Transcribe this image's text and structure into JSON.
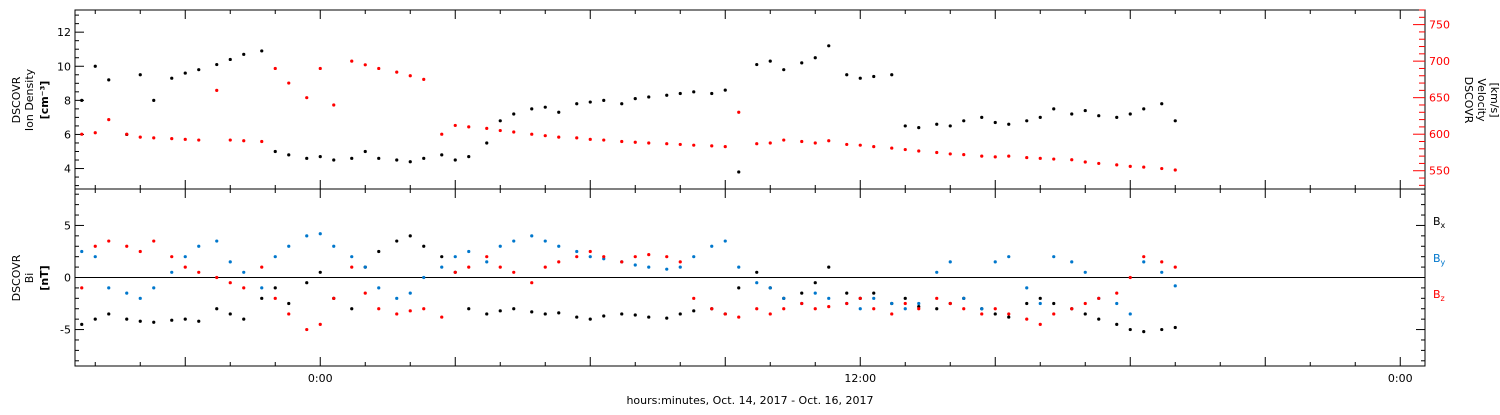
{
  "chart_data": [
    {
      "type": "scatter",
      "title": "",
      "xlabel": "hours:minutes, Oct. 14, 2017 - Oct. 16, 2017",
      "x_ticks": [
        {
          "hour": 24,
          "label": "0:00"
        },
        {
          "hour": 36,
          "label": "12:00"
        },
        {
          "hour": 48,
          "label": "0:00"
        }
      ],
      "xlim_hours": [
        18.55,
        48.55
      ],
      "y_left": {
        "label_lines": [
          "DSCOVR",
          "Ion Density"
        ],
        "unit": "[cm⁻³]",
        "ylim": [
          2.8,
          13.3
        ],
        "ticks": [
          4,
          6,
          8,
          10,
          12
        ]
      },
      "y_right": {
        "label_lines": [
          "DSCOVR",
          "Velocity"
        ],
        "unit": "[km/s]",
        "ylim": [
          525,
          770
        ],
        "ticks": [
          550,
          600,
          650,
          700,
          750
        ]
      },
      "series": [
        {
          "name": "",
          "axis": "left",
          "color": "#000000",
          "x_hours": [
            18.7,
            19.0,
            19.3,
            19.7,
            20.0,
            20.3,
            20.7,
            21.0,
            21.3,
            21.7,
            22.0,
            22.3,
            22.7,
            23.0,
            23.3,
            23.7,
            24.0,
            24.3,
            24.7,
            25.0,
            25.3,
            25.7,
            26.0,
            26.3,
            26.7,
            27.0,
            27.3,
            27.7,
            28.0,
            28.3,
            28.7,
            29.0,
            29.3,
            29.7,
            30.0,
            30.3,
            30.7,
            31.0,
            31.3,
            31.7,
            32.0,
            32.3,
            32.7,
            33.0,
            33.3,
            33.7,
            34.0,
            34.3,
            34.7,
            35.0,
            35.3,
            35.7,
            36.0,
            36.3,
            36.7,
            37.0,
            37.3,
            37.7,
            38.0,
            38.3,
            38.7,
            39.0,
            39.3,
            39.7,
            40.0,
            40.3,
            40.7,
            41.0,
            41.3,
            41.7,
            42.0,
            42.3,
            42.7,
            43.0
          ],
          "values": [
            8.0,
            10.0,
            9.2,
            6.0,
            9.5,
            8.0,
            9.3,
            9.6,
            9.8,
            10.1,
            10.4,
            10.7,
            10.9,
            5.0,
            4.8,
            4.6,
            4.7,
            4.5,
            4.6,
            5.0,
            4.6,
            4.5,
            4.4,
            4.6,
            4.8,
            4.5,
            4.7,
            5.5,
            6.8,
            7.2,
            7.5,
            7.6,
            7.3,
            7.8,
            7.9,
            8.0,
            7.8,
            8.1,
            8.2,
            8.3,
            8.4,
            8.5,
            8.4,
            8.6,
            3.8,
            10.1,
            10.3,
            9.8,
            10.2,
            10.5,
            11.2,
            9.5,
            9.3,
            9.4,
            9.5,
            6.5,
            6.4,
            6.6,
            6.5,
            6.8,
            7.0,
            6.7,
            6.6,
            6.8,
            7.0,
            7.5,
            7.2,
            7.4,
            7.1,
            7.0,
            7.2,
            7.5,
            7.8,
            6.8
          ]
        },
        {
          "name": "",
          "axis": "right",
          "color": "#ff0000",
          "x_hours": [
            18.7,
            19.0,
            19.3,
            19.7,
            20.0,
            20.3,
            20.7,
            21.0,
            21.3,
            21.7,
            22.0,
            22.3,
            22.7,
            23.0,
            23.3,
            23.7,
            24.0,
            24.3,
            24.7,
            25.0,
            25.3,
            25.7,
            26.0,
            26.3,
            26.7,
            27.0,
            27.3,
            27.7,
            28.0,
            28.3,
            28.7,
            29.0,
            29.3,
            29.7,
            30.0,
            30.3,
            30.7,
            31.0,
            31.3,
            31.7,
            32.0,
            32.3,
            32.7,
            33.0,
            33.3,
            33.7,
            34.0,
            34.3,
            34.7,
            35.0,
            35.3,
            35.7,
            36.0,
            36.3,
            36.7,
            37.0,
            37.3,
            37.7,
            38.0,
            38.3,
            38.7,
            39.0,
            39.3,
            39.7,
            40.0,
            40.3,
            40.7,
            41.0,
            41.3,
            41.7,
            42.0,
            42.3,
            42.7,
            43.0
          ],
          "values": [
            600,
            602,
            620,
            600,
            596,
            595,
            594,
            593,
            592,
            660,
            592,
            591,
            590,
            690,
            670,
            650,
            690,
            640,
            700,
            695,
            690,
            685,
            680,
            675,
            600,
            612,
            610,
            608,
            605,
            603,
            600,
            598,
            596,
            595,
            593,
            592,
            590,
            589,
            588,
            587,
            586,
            585,
            584,
            583,
            630,
            587,
            588,
            592,
            590,
            588,
            591,
            586,
            585,
            583,
            581,
            579,
            577,
            575,
            573,
            572,
            570,
            569,
            570,
            568,
            567,
            566,
            565,
            562,
            560,
            558,
            556,
            555,
            553,
            551
          ]
        }
      ]
    },
    {
      "type": "scatter",
      "title": "",
      "xlabel": "hours:minutes, Oct. 14, 2017 - Oct. 16, 2017",
      "xlim_hours": [
        18.55,
        48.55
      ],
      "y_left": {
        "label_lines": [
          "DSCOVR",
          "Bi"
        ],
        "unit": "[nT]",
        "ylim": [
          -8.5,
          8.5
        ],
        "ticks": [
          -5,
          0,
          5
        ]
      },
      "zero_line": true,
      "legend": [
        {
          "base": "B",
          "sub": "x",
          "color": "#000000"
        },
        {
          "base": "B",
          "sub": "y",
          "color": "#0077cc"
        },
        {
          "base": "B",
          "sub": "z",
          "color": "#ff0000"
        }
      ],
      "legend_placement": "right",
      "series": [
        {
          "name": "Bx",
          "color": "#000000",
          "x_hours": [
            18.7,
            19.0,
            19.3,
            19.7,
            20.0,
            20.3,
            20.7,
            21.0,
            21.3,
            21.7,
            22.0,
            22.3,
            22.7,
            23.0,
            23.3,
            23.7,
            24.0,
            24.3,
            24.7,
            25.0,
            25.3,
            25.7,
            26.0,
            26.3,
            26.7,
            27.0,
            27.3,
            27.7,
            28.0,
            28.3,
            28.7,
            29.0,
            29.3,
            29.7,
            30.0,
            30.3,
            30.7,
            31.0,
            31.3,
            31.7,
            32.0,
            32.3,
            32.7,
            33.0,
            33.3,
            33.7,
            34.0,
            34.3,
            34.7,
            35.0,
            35.3,
            35.7,
            36.0,
            36.3,
            36.7,
            37.0,
            37.3,
            37.7,
            38.0,
            38.3,
            38.7,
            39.0,
            39.3,
            39.7,
            40.0,
            40.3,
            40.7,
            41.0,
            41.3,
            41.7,
            42.0,
            42.3,
            42.7,
            43.0
          ],
          "values": [
            -4.5,
            -4.0,
            -3.5,
            -4.0,
            -4.2,
            -4.3,
            -4.1,
            -4.0,
            -4.2,
            -3.0,
            -3.5,
            -4.0,
            -2.0,
            -1.0,
            -2.5,
            -0.5,
            0.5,
            -2.0,
            -3.0,
            1.0,
            2.5,
            3.5,
            4.0,
            3.0,
            2.0,
            0.5,
            -3.0,
            -3.5,
            -3.2,
            -3.0,
            -3.3,
            -3.5,
            -3.4,
            -3.8,
            -4.0,
            -3.7,
            -3.5,
            -3.6,
            -3.8,
            -3.9,
            -3.5,
            -3.2,
            -3.0,
            -3.5,
            -1.0,
            0.5,
            -1.0,
            -2.0,
            -1.5,
            -0.5,
            1.0,
            -1.5,
            -2.0,
            -1.5,
            -2.5,
            -2.0,
            -2.8,
            -3.0,
            -2.5,
            -2.0,
            -3.0,
            -3.5,
            -3.8,
            -2.5,
            -2.0,
            -2.5,
            -3.0,
            -3.5,
            -4.0,
            -4.5,
            -5.0,
            -5.2,
            -5.0,
            -4.8
          ]
        },
        {
          "name": "By",
          "color": "#0077cc",
          "x_hours": [
            18.7,
            19.0,
            19.3,
            19.7,
            20.0,
            20.3,
            20.7,
            21.0,
            21.3,
            21.7,
            22.0,
            22.3,
            22.7,
            23.0,
            23.3,
            23.7,
            24.0,
            24.3,
            24.7,
            25.0,
            25.3,
            25.7,
            26.0,
            26.3,
            26.7,
            27.0,
            27.3,
            27.7,
            28.0,
            28.3,
            28.7,
            29.0,
            29.3,
            29.7,
            30.0,
            30.3,
            30.7,
            31.0,
            31.3,
            31.7,
            32.0,
            32.3,
            32.7,
            33.0,
            33.3,
            33.7,
            34.0,
            34.3,
            34.7,
            35.0,
            35.3,
            35.7,
            36.0,
            36.3,
            36.7,
            37.0,
            37.3,
            37.7,
            38.0,
            38.3,
            38.7,
            39.0,
            39.3,
            39.7,
            40.0,
            40.3,
            40.7,
            41.0,
            41.3,
            41.7,
            42.0,
            42.3,
            42.7,
            43.0
          ],
          "values": [
            2.5,
            2.0,
            -1.0,
            -1.5,
            -2.0,
            -1.0,
            0.5,
            2.0,
            3.0,
            3.5,
            1.5,
            0.5,
            -1.0,
            2.0,
            3.0,
            4.0,
            4.2,
            3.0,
            2.0,
            1.0,
            -1.0,
            -2.0,
            -1.5,
            0.0,
            1.0,
            2.0,
            2.5,
            1.5,
            3.0,
            3.5,
            4.0,
            3.5,
            3.0,
            2.5,
            2.0,
            1.8,
            1.5,
            1.2,
            1.0,
            0.8,
            1.0,
            2.0,
            3.0,
            3.5,
            1.0,
            -0.5,
            -1.0,
            -2.0,
            -2.5,
            -1.5,
            -2.0,
            -2.5,
            -3.0,
            -2.0,
            -2.5,
            -3.0,
            -2.5,
            0.5,
            1.5,
            -2.0,
            -3.0,
            1.5,
            2.0,
            -1.0,
            -2.5,
            2.0,
            1.5,
            0.5,
            -2.0,
            -2.5,
            -3.5,
            1.5,
            0.5,
            -0.8
          ]
        },
        {
          "name": "Bz",
          "color": "#ff0000",
          "x_hours": [
            18.7,
            19.0,
            19.3,
            19.7,
            20.0,
            20.3,
            20.7,
            21.0,
            21.3,
            21.7,
            22.0,
            22.3,
            22.7,
            23.0,
            23.3,
            23.7,
            24.0,
            24.3,
            24.7,
            25.0,
            25.3,
            25.7,
            26.0,
            26.3,
            26.7,
            27.0,
            27.3,
            27.7,
            28.0,
            28.3,
            28.7,
            29.0,
            29.3,
            29.7,
            30.0,
            30.3,
            30.7,
            31.0,
            31.3,
            31.7,
            32.0,
            32.3,
            32.7,
            33.0,
            33.3,
            33.7,
            34.0,
            34.3,
            34.7,
            35.0,
            35.3,
            35.7,
            36.0,
            36.3,
            36.7,
            37.0,
            37.3,
            37.7,
            38.0,
            38.3,
            38.7,
            39.0,
            39.3,
            39.7,
            40.0,
            40.3,
            40.7,
            41.0,
            41.3,
            41.7,
            42.0,
            42.3,
            42.7,
            43.0
          ],
          "values": [
            -1.0,
            3.0,
            3.5,
            3.0,
            2.5,
            3.5,
            2.0,
            1.0,
            0.5,
            0.0,
            -0.5,
            -1.0,
            1.0,
            -2.0,
            -3.5,
            -5.0,
            -4.5,
            -2.0,
            1.0,
            -1.5,
            -3.0,
            -3.5,
            -3.2,
            -3.0,
            -3.8,
            0.5,
            1.0,
            2.0,
            1.0,
            0.5,
            -0.5,
            1.0,
            1.5,
            2.0,
            2.5,
            2.0,
            1.5,
            2.0,
            2.2,
            2.0,
            1.5,
            -2.0,
            -3.0,
            -3.5,
            -3.8,
            -3.0,
            -3.5,
            -3.0,
            -2.5,
            -3.0,
            -2.8,
            -2.5,
            -2.0,
            -3.0,
            -3.5,
            -2.5,
            -3.0,
            -2.0,
            -2.5,
            -3.0,
            -3.5,
            -3.0,
            -3.5,
            -4.0,
            -4.5,
            -3.5,
            -3.0,
            -2.5,
            -2.0,
            -1.5,
            0.0,
            2.0,
            1.5,
            1.0
          ]
        }
      ]
    }
  ]
}
